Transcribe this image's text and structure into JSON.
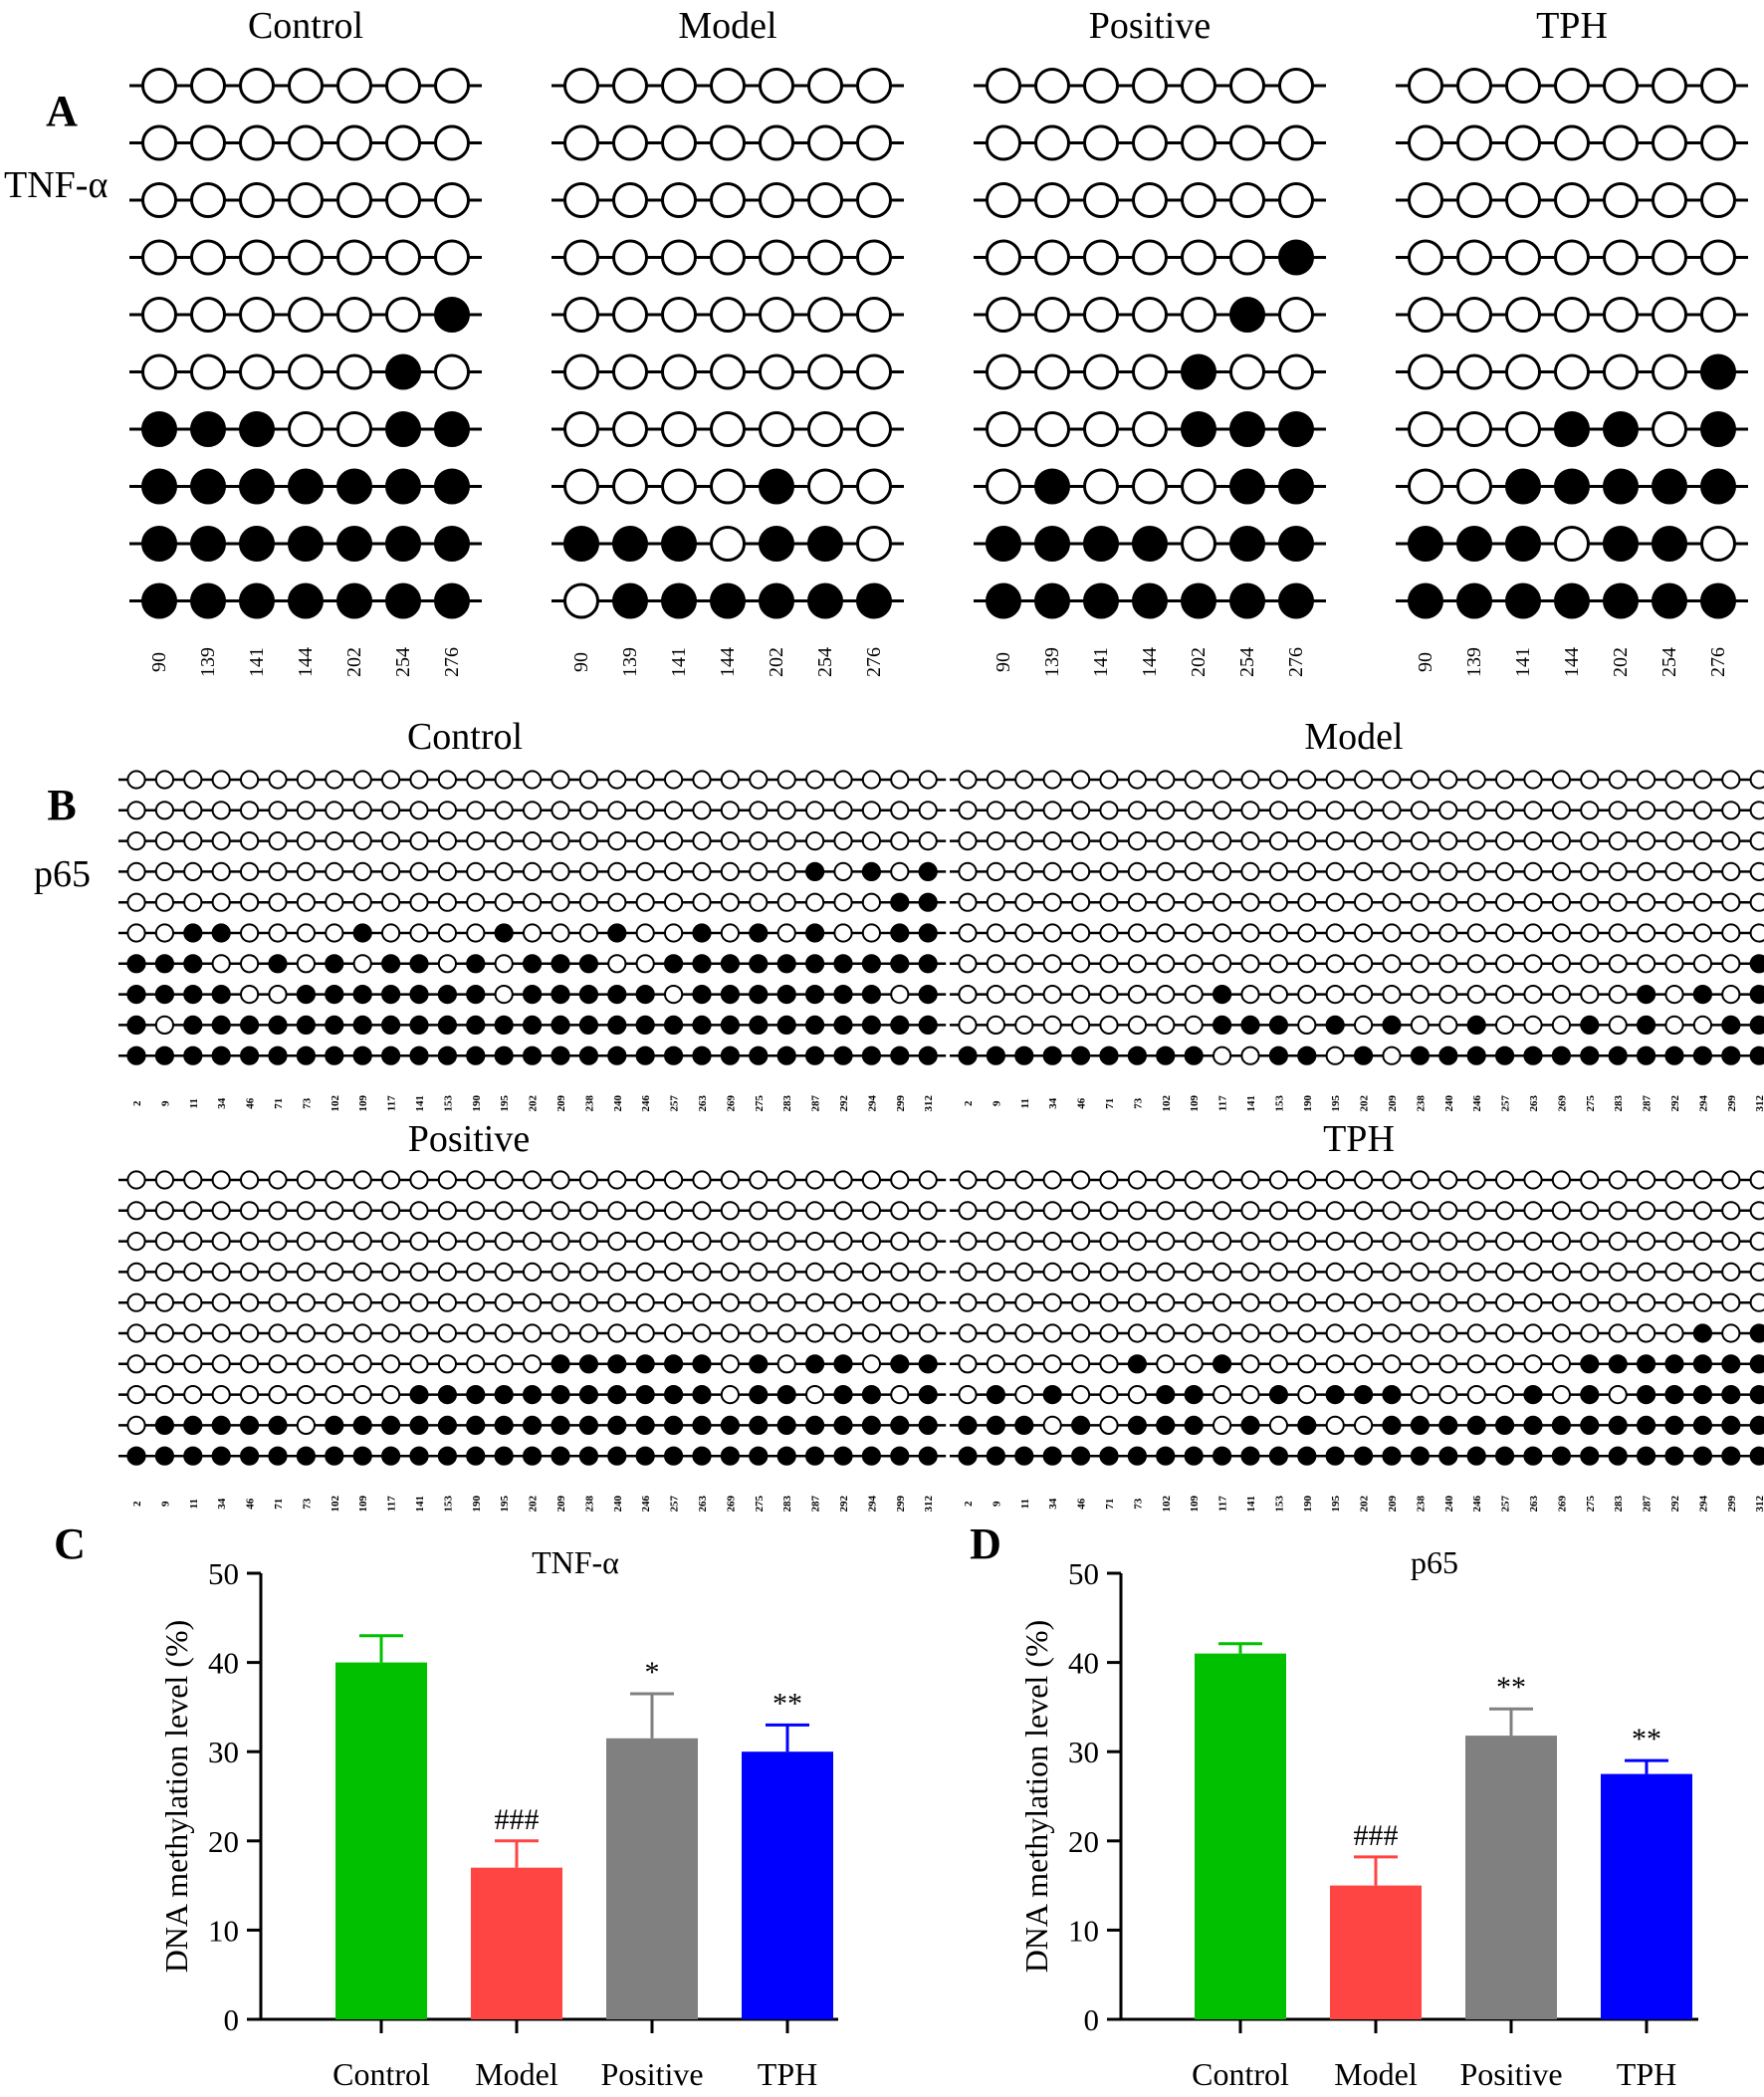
{
  "panels": {
    "A": {
      "letter": "A",
      "gene": "TNF-α",
      "groups": [
        {
          "title": "Control",
          "sites": [
            "90",
            "139",
            "141",
            "144",
            "202",
            "254",
            "276"
          ],
          "rows": [
            "0000000",
            "0000000",
            "0000000",
            "0000000",
            "0000001",
            "0000010",
            "1110011",
            "1111111",
            "1111111",
            "1111111"
          ]
        },
        {
          "title": "Model",
          "sites": [
            "90",
            "139",
            "141",
            "144",
            "202",
            "254",
            "276"
          ],
          "rows": [
            "0000000",
            "0000000",
            "0000000",
            "0000000",
            "0000000",
            "0000000",
            "0000000",
            "0000100",
            "1110110",
            "0111111"
          ]
        },
        {
          "title": "Positive",
          "sites": [
            "90",
            "139",
            "141",
            "144",
            "202",
            "254",
            "276"
          ],
          "rows": [
            "0000000",
            "0000000",
            "0000000",
            "0000001",
            "0000010",
            "0000100",
            "0000111",
            "0100011",
            "1111011",
            "1111111"
          ]
        },
        {
          "title": "TPH",
          "sites": [
            "90",
            "139",
            "141",
            "144",
            "202",
            "254",
            "276"
          ],
          "rows": [
            "0000000",
            "0000000",
            "0000000",
            "0000000",
            "0000000",
            "0000001",
            "0001101",
            "0011111",
            "1110110",
            "1111111"
          ]
        }
      ]
    },
    "B": {
      "letter": "B",
      "gene": "p65",
      "sites": [
        "2",
        "9",
        "11",
        "34",
        "46",
        "71",
        "73",
        "102",
        "109",
        "117",
        "141",
        "153",
        "190",
        "195",
        "202",
        "209",
        "238",
        "240",
        "246",
        "257",
        "263",
        "269",
        "275",
        "283",
        "287",
        "292",
        "294",
        "299",
        "312"
      ],
      "groups": [
        {
          "title": "Control",
          "rows": [
            "00000000000000000000000000000",
            "00000000000000000000000000000",
            "00000000000000000000000000000",
            "00000000000000000000000010101",
            "00000000000000000000000000011",
            "00110000100001000100101010011",
            "11100101011010111001111111111",
            "11110011111110111110111111101",
            "10111111111111111111111111111",
            "11111111111111111111111111111"
          ]
        },
        {
          "title": "Model",
          "rows": [
            "00000000000000000000000000000",
            "00000000000000000000000000000",
            "00000000000000000000000000000",
            "00000000000000000000000000000",
            "00000000000000000000000000000",
            "00000000000000000000000000000",
            "00000000000000000000000000001",
            "00000000010000000000000010101",
            "00000000011101010010001010011",
            "11111111100110101111111111111"
          ]
        },
        {
          "title": "Positive",
          "rows": [
            "00000000000000000000000000000",
            "00000000000000000000000000000",
            "00000000000000000000000000000",
            "00000000000000000000000000000",
            "00000000000000000000000000000",
            "00000000000000000000000000000",
            "00000000000000011111101011011",
            "00000000001111111111101101101",
            "01111101111111111111111111111",
            "11111111111111111111111111111"
          ]
        },
        {
          "title": "TPH",
          "rows": [
            "00000000000000000000000000000",
            "00000000000000000000000000000",
            "00000000000000000000000000000",
            "00000000000000000000000000000",
            "00000000000000000000000000000",
            "00000000000000000000000000101",
            "00000010010000000000001111111",
            "01010001100101110000101011111",
            "11101011101010011111111111111",
            "11111111111111111111111111111"
          ]
        }
      ]
    }
  },
  "chart_data": [
    {
      "panel": "C",
      "type": "bar",
      "title": "TNF-α",
      "ylabel": "DNA methylation level (%)",
      "ylim": [
        0,
        50
      ],
      "yticks": [
        "0",
        "10",
        "20",
        "30",
        "40",
        "50"
      ],
      "categories": [
        "Control",
        "Model",
        "Positive",
        "TPH"
      ],
      "values": [
        40.0,
        17.0,
        31.5,
        30.0
      ],
      "errors": [
        3.0,
        3.0,
        5.0,
        3.0
      ],
      "annotations": [
        "",
        "###",
        "*",
        "**"
      ],
      "colors": [
        "#00c000",
        "#ff4444",
        "#808080",
        "#0000ff"
      ],
      "grid": false
    },
    {
      "panel": "D",
      "type": "bar",
      "title": "p65",
      "ylabel": "DNA methylation level (%)",
      "ylim": [
        0,
        50
      ],
      "yticks": [
        "0",
        "10",
        "20",
        "30",
        "40",
        "50"
      ],
      "categories": [
        "Control",
        "Model",
        "Positive",
        "TPH"
      ],
      "values": [
        41.0,
        15.0,
        31.8,
        27.5
      ],
      "errors": [
        1.1,
        3.2,
        3.0,
        1.5
      ],
      "annotations": [
        "",
        "###",
        "**",
        "**"
      ],
      "colors": [
        "#00c000",
        "#ff4444",
        "#808080",
        "#0000ff"
      ],
      "grid": false
    }
  ]
}
